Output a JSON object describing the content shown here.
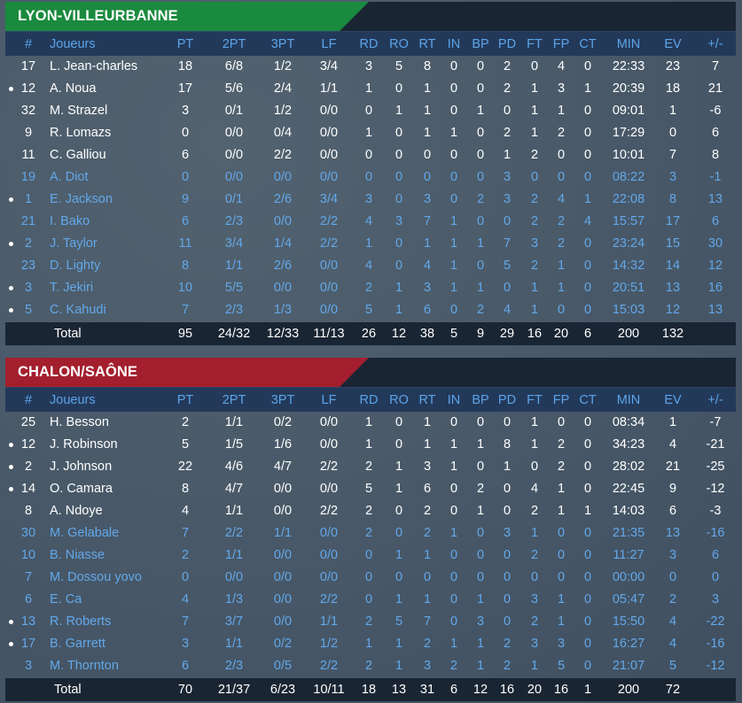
{
  "columns": [
    "#",
    "Joueurs",
    "PT",
    "2PT",
    "3PT",
    "LF",
    "RD",
    "RO",
    "RT",
    "IN",
    "BP",
    "PD",
    "FT",
    "FP",
    "CT",
    "MIN",
    "EV",
    "+/-"
  ],
  "total_label": "Total",
  "teams": [
    {
      "name": "LYON-VILLEURBANNE",
      "players": [
        {
          "num": "17",
          "name": "L. Jean-charles",
          "starter": true,
          "dot": false,
          "stats": [
            "18",
            "6/8",
            "1/2",
            "3/4",
            "3",
            "5",
            "8",
            "0",
            "0",
            "2",
            "0",
            "4",
            "0",
            "22:33",
            "23",
            "7"
          ]
        },
        {
          "num": "12",
          "name": "A. Noua",
          "starter": true,
          "dot": true,
          "stats": [
            "17",
            "5/6",
            "2/4",
            "1/1",
            "1",
            "0",
            "1",
            "0",
            "0",
            "2",
            "1",
            "3",
            "1",
            "20:39",
            "18",
            "21"
          ]
        },
        {
          "num": "32",
          "name": "M. Strazel",
          "starter": true,
          "dot": false,
          "stats": [
            "3",
            "0/1",
            "1/2",
            "0/0",
            "0",
            "1",
            "1",
            "0",
            "1",
            "0",
            "1",
            "1",
            "0",
            "09:01",
            "1",
            "-6"
          ]
        },
        {
          "num": "9",
          "name": "R. Lomazs",
          "starter": true,
          "dot": false,
          "stats": [
            "0",
            "0/0",
            "0/4",
            "0/0",
            "1",
            "0",
            "1",
            "1",
            "0",
            "2",
            "1",
            "2",
            "0",
            "17:29",
            "0",
            "6"
          ]
        },
        {
          "num": "11",
          "name": "C. Galliou",
          "starter": true,
          "dot": false,
          "stats": [
            "6",
            "0/0",
            "2/2",
            "0/0",
            "0",
            "0",
            "0",
            "0",
            "0",
            "1",
            "2",
            "0",
            "0",
            "10:01",
            "7",
            "8"
          ]
        },
        {
          "num": "19",
          "name": "A. Diot",
          "starter": false,
          "dot": false,
          "stats": [
            "0",
            "0/0",
            "0/0",
            "0/0",
            "0",
            "0",
            "0",
            "0",
            "0",
            "3",
            "0",
            "0",
            "0",
            "08:22",
            "3",
            "-1"
          ]
        },
        {
          "num": "1",
          "name": "E. Jackson",
          "starter": false,
          "dot": true,
          "stats": [
            "9",
            "0/1",
            "2/6",
            "3/4",
            "3",
            "0",
            "3",
            "0",
            "2",
            "3",
            "2",
            "4",
            "1",
            "22:08",
            "8",
            "13"
          ]
        },
        {
          "num": "21",
          "name": "I. Bako",
          "starter": false,
          "dot": false,
          "stats": [
            "6",
            "2/3",
            "0/0",
            "2/2",
            "4",
            "3",
            "7",
            "1",
            "0",
            "0",
            "2",
            "2",
            "4",
            "15:57",
            "17",
            "6"
          ]
        },
        {
          "num": "2",
          "name": "J. Taylor",
          "starter": false,
          "dot": true,
          "stats": [
            "11",
            "3/4",
            "1/4",
            "2/2",
            "1",
            "0",
            "1",
            "1",
            "1",
            "7",
            "3",
            "2",
            "0",
            "23:24",
            "15",
            "30"
          ]
        },
        {
          "num": "23",
          "name": "D. Lighty",
          "starter": false,
          "dot": false,
          "stats": [
            "8",
            "1/1",
            "2/6",
            "0/0",
            "4",
            "0",
            "4",
            "1",
            "0",
            "5",
            "2",
            "1",
            "0",
            "14:32",
            "14",
            "12"
          ]
        },
        {
          "num": "3",
          "name": "T. Jekiri",
          "starter": false,
          "dot": true,
          "stats": [
            "10",
            "5/5",
            "0/0",
            "0/0",
            "2",
            "1",
            "3",
            "1",
            "1",
            "0",
            "1",
            "1",
            "0",
            "20:51",
            "13",
            "16"
          ]
        },
        {
          "num": "5",
          "name": "C. Kahudi",
          "starter": false,
          "dot": true,
          "stats": [
            "7",
            "2/3",
            "1/3",
            "0/0",
            "5",
            "1",
            "6",
            "0",
            "2",
            "4",
            "1",
            "0",
            "0",
            "15:03",
            "12",
            "13"
          ]
        }
      ],
      "totals": [
        "95",
        "24/32",
        "12/33",
        "11/13",
        "26",
        "12",
        "38",
        "5",
        "9",
        "29",
        "16",
        "20",
        "6",
        "200",
        "132",
        ""
      ]
    },
    {
      "name": "CHALON/SAÔNE",
      "players": [
        {
          "num": "25",
          "name": "H. Besson",
          "starter": true,
          "dot": false,
          "stats": [
            "2",
            "1/1",
            "0/2",
            "0/0",
            "1",
            "0",
            "1",
            "0",
            "0",
            "0",
            "1",
            "0",
            "0",
            "08:34",
            "1",
            "-7"
          ]
        },
        {
          "num": "12",
          "name": "J. Robinson",
          "starter": true,
          "dot": true,
          "stats": [
            "5",
            "1/5",
            "1/6",
            "0/0",
            "1",
            "0",
            "1",
            "1",
            "1",
            "8",
            "1",
            "2",
            "0",
            "34:23",
            "4",
            "-21"
          ]
        },
        {
          "num": "2",
          "name": "J. Johnson",
          "starter": true,
          "dot": true,
          "stats": [
            "22",
            "4/6",
            "4/7",
            "2/2",
            "2",
            "1",
            "3",
            "1",
            "0",
            "1",
            "0",
            "2",
            "0",
            "28:02",
            "21",
            "-25"
          ]
        },
        {
          "num": "14",
          "name": "O. Camara",
          "starter": true,
          "dot": true,
          "stats": [
            "8",
            "4/7",
            "0/0",
            "0/0",
            "5",
            "1",
            "6",
            "0",
            "2",
            "0",
            "4",
            "1",
            "0",
            "22:45",
            "9",
            "-12"
          ]
        },
        {
          "num": "8",
          "name": "A. Ndoye",
          "starter": true,
          "dot": false,
          "stats": [
            "4",
            "1/1",
            "0/0",
            "2/2",
            "2",
            "0",
            "2",
            "0",
            "1",
            "0",
            "2",
            "1",
            "1",
            "14:03",
            "6",
            "-3"
          ]
        },
        {
          "num": "30",
          "name": "M. Gelabale",
          "starter": false,
          "dot": false,
          "stats": [
            "7",
            "2/2",
            "1/1",
            "0/0",
            "2",
            "0",
            "2",
            "1",
            "0",
            "3",
            "1",
            "0",
            "0",
            "21:35",
            "13",
            "-16"
          ]
        },
        {
          "num": "10",
          "name": "B. Niasse",
          "starter": false,
          "dot": false,
          "stats": [
            "2",
            "1/1",
            "0/0",
            "0/0",
            "0",
            "1",
            "1",
            "0",
            "0",
            "0",
            "2",
            "0",
            "0",
            "11:27",
            "3",
            "6"
          ]
        },
        {
          "num": "7",
          "name": "M. Dossou yovo",
          "starter": false,
          "dot": false,
          "stats": [
            "0",
            "0/0",
            "0/0",
            "0/0",
            "0",
            "0",
            "0",
            "0",
            "0",
            "0",
            "0",
            "0",
            "0",
            "00:00",
            "0",
            "0"
          ]
        },
        {
          "num": "6",
          "name": "E. Ca",
          "starter": false,
          "dot": false,
          "stats": [
            "4",
            "1/3",
            "0/0",
            "2/2",
            "0",
            "1",
            "1",
            "0",
            "1",
            "0",
            "3",
            "1",
            "0",
            "05:47",
            "2",
            "3"
          ]
        },
        {
          "num": "13",
          "name": "R. Roberts",
          "starter": false,
          "dot": true,
          "stats": [
            "7",
            "3/7",
            "0/0",
            "1/1",
            "2",
            "5",
            "7",
            "0",
            "3",
            "0",
            "2",
            "1",
            "0",
            "15:50",
            "4",
            "-22"
          ]
        },
        {
          "num": "17",
          "name": "B. Garrett",
          "starter": false,
          "dot": true,
          "stats": [
            "3",
            "1/1",
            "0/2",
            "1/2",
            "1",
            "1",
            "2",
            "1",
            "1",
            "2",
            "3",
            "3",
            "0",
            "16:27",
            "4",
            "-16"
          ]
        },
        {
          "num": "3",
          "name": "M. Thornton",
          "starter": false,
          "dot": false,
          "stats": [
            "6",
            "2/3",
            "0/5",
            "2/2",
            "2",
            "1",
            "3",
            "2",
            "1",
            "2",
            "1",
            "5",
            "0",
            "21:07",
            "5",
            "-12"
          ]
        }
      ],
      "totals": [
        "70",
        "21/37",
        "6/23",
        "10/11",
        "18",
        "13",
        "31",
        "6",
        "12",
        "16",
        "20",
        "16",
        "1",
        "200",
        "72",
        ""
      ]
    }
  ]
}
